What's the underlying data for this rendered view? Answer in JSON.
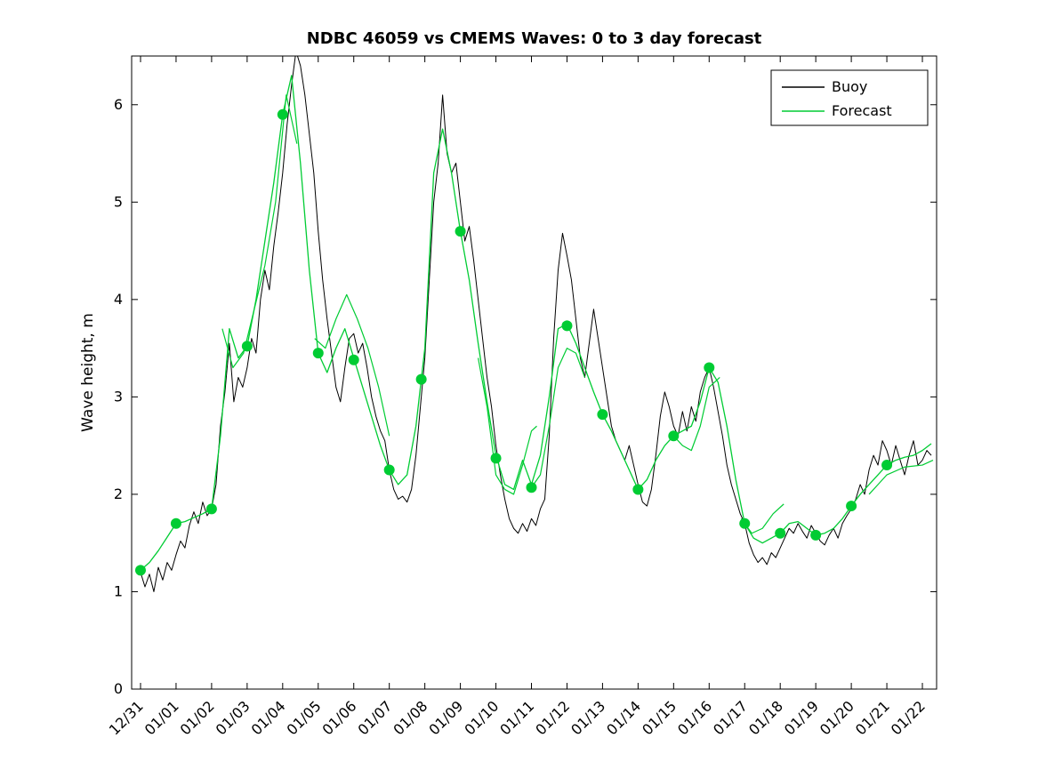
{
  "figure": {
    "background": "#ffffff",
    "axis_color": "#000000",
    "text_color": "#000000"
  },
  "chart_data": {
    "type": "line",
    "title": "NDBC 46059 vs CMEMS Waves: 0 to 3 day forecast",
    "xlabel": "",
    "ylabel": "Wave height, m",
    "xlim": [
      -0.25,
      22.4
    ],
    "ylim": [
      0,
      6.5
    ],
    "grid": false,
    "x_tick_values": [
      0,
      1,
      2,
      3,
      4,
      5,
      6,
      7,
      8,
      9,
      10,
      11,
      12,
      13,
      14,
      15,
      16,
      17,
      18,
      19,
      20,
      21,
      22
    ],
    "x_tick_labels": [
      "12/31",
      "01/01",
      "01/02",
      "01/03",
      "01/04",
      "01/05",
      "01/06",
      "01/07",
      "01/08",
      "01/09",
      "01/10",
      "01/11",
      "01/12",
      "01/13",
      "01/14",
      "01/15",
      "01/16",
      "01/17",
      "01/18",
      "01/19",
      "01/20",
      "01/21",
      "01/22"
    ],
    "y_tick_values": [
      0,
      1,
      2,
      3,
      4,
      5,
      6
    ],
    "legend": {
      "position": "northeast",
      "entries": [
        {
          "label": "Buoy",
          "color": "#000000"
        },
        {
          "label": "Forecast",
          "color": "#00cc33"
        }
      ]
    },
    "series": [
      {
        "name": "Buoy",
        "color": "#000000",
        "line_width": 1,
        "x0": 0,
        "dx": 0.125,
        "y": [
          1.2,
          1.05,
          1.18,
          1.0,
          1.25,
          1.12,
          1.3,
          1.22,
          1.38,
          1.52,
          1.45,
          1.68,
          1.82,
          1.7,
          1.92,
          1.78,
          1.85,
          2.1,
          2.7,
          3.05,
          3.55,
          2.95,
          3.2,
          3.1,
          3.3,
          3.6,
          3.45,
          4.0,
          4.3,
          4.1,
          4.55,
          4.9,
          5.3,
          5.8,
          6.2,
          6.55,
          6.4,
          6.1,
          5.7,
          5.3,
          4.7,
          4.2,
          3.8,
          3.45,
          3.1,
          2.95,
          3.3,
          3.6,
          3.65,
          3.45,
          3.55,
          3.3,
          3.0,
          2.8,
          2.65,
          2.55,
          2.25,
          2.05,
          1.95,
          1.98,
          1.92,
          2.05,
          2.4,
          2.9,
          3.4,
          4.2,
          5.0,
          5.4,
          6.1,
          5.5,
          5.3,
          5.4,
          5.0,
          4.6,
          4.75,
          4.4,
          4.0,
          3.6,
          3.2,
          2.9,
          2.5,
          2.2,
          1.95,
          1.75,
          1.65,
          1.6,
          1.7,
          1.62,
          1.75,
          1.68,
          1.85,
          1.95,
          2.6,
          3.6,
          4.3,
          4.68,
          4.45,
          4.2,
          3.8,
          3.4,
          3.2,
          3.55,
          3.9,
          3.6,
          3.3,
          3.0,
          2.7,
          2.55,
          2.45,
          2.35,
          2.5,
          2.3,
          2.1,
          1.92,
          1.88,
          2.05,
          2.4,
          2.8,
          3.05,
          2.9,
          2.7,
          2.6,
          2.85,
          2.65,
          2.9,
          2.75,
          3.05,
          3.2,
          3.3,
          3.1,
          2.85,
          2.6,
          2.3,
          2.1,
          1.95,
          1.8,
          1.7,
          1.5,
          1.38,
          1.3,
          1.35,
          1.28,
          1.4,
          1.35,
          1.45,
          1.55,
          1.65,
          1.6,
          1.7,
          1.62,
          1.55,
          1.68,
          1.6,
          1.52,
          1.48,
          1.58,
          1.65,
          1.55,
          1.7,
          1.78,
          1.85,
          1.95,
          2.1,
          2.0,
          2.25,
          2.4,
          2.3,
          2.55,
          2.45,
          2.3,
          2.5,
          2.35,
          2.2,
          2.4,
          2.55,
          2.3,
          2.35,
          2.45,
          2.4
        ]
      },
      {
        "name": "Forecast",
        "color": "#00cc33",
        "line_width": 1.3,
        "x0": 0,
        "dx": 0.25,
        "y": [
          1.22,
          1.3,
          1.42,
          1.56,
          1.7,
          1.72,
          1.76,
          1.8,
          1.85,
          2.6,
          3.7,
          3.4,
          3.52,
          4.0,
          4.6,
          5.2,
          5.9,
          6.3,
          5.4,
          4.3,
          3.45,
          3.25,
          3.5,
          3.7,
          3.4,
          3.1,
          2.8,
          2.5,
          2.25,
          2.1,
          2.2,
          2.7,
          3.5,
          5.3,
          5.75,
          5.3,
          4.7,
          4.2,
          3.55,
          2.95,
          2.4,
          2.1,
          2.05,
          2.35,
          2.1,
          2.4,
          3.0,
          3.7,
          3.75,
          3.55,
          3.3,
          3.05,
          2.82,
          2.65,
          2.45,
          2.25,
          2.05,
          2.15,
          2.35,
          2.5,
          2.6,
          2.65,
          2.7,
          2.95,
          3.3,
          3.15,
          2.7,
          2.15,
          1.7,
          1.55,
          1.5,
          1.55,
          1.6,
          1.7,
          1.72,
          1.65,
          1.58,
          1.6,
          1.65,
          1.75,
          1.88,
          2.0,
          2.1,
          2.2,
          2.3,
          2.35,
          2.38,
          2.4,
          2.45,
          2.52
        ]
      }
    ],
    "forecast_spread_segments": [
      {
        "points": [
          [
            2.3,
            3.7
          ],
          [
            2.6,
            3.3
          ],
          [
            2.9,
            3.45
          ],
          [
            3.2,
            3.9
          ],
          [
            3.5,
            4.35
          ],
          [
            3.8,
            5.0
          ],
          [
            4.1,
            6.1
          ],
          [
            4.4,
            5.6
          ]
        ]
      },
      {
        "points": [
          [
            4.9,
            3.6
          ],
          [
            5.2,
            3.5
          ],
          [
            5.5,
            3.8
          ],
          [
            5.8,
            4.05
          ],
          [
            6.1,
            3.8
          ],
          [
            6.4,
            3.5
          ],
          [
            6.7,
            3.1
          ],
          [
            7.0,
            2.6
          ]
        ]
      },
      {
        "points": [
          [
            9.5,
            3.4
          ],
          [
            9.75,
            2.9
          ],
          [
            10.0,
            2.2
          ],
          [
            10.25,
            2.05
          ],
          [
            10.5,
            2.0
          ],
          [
            10.75,
            2.3
          ],
          [
            11.0,
            2.65
          ],
          [
            11.15,
            2.7
          ]
        ]
      },
      {
        "points": [
          [
            11.0,
            2.07
          ],
          [
            11.25,
            2.2
          ],
          [
            11.5,
            2.7
          ],
          [
            11.75,
            3.3
          ],
          [
            12.0,
            3.5
          ],
          [
            12.25,
            3.45
          ],
          [
            12.5,
            3.2
          ]
        ]
      },
      {
        "points": [
          [
            15.0,
            2.6
          ],
          [
            15.25,
            2.5
          ],
          [
            15.5,
            2.45
          ],
          [
            15.75,
            2.7
          ],
          [
            16.0,
            3.1
          ],
          [
            16.3,
            3.2
          ]
        ]
      },
      {
        "points": [
          [
            16.9,
            1.75
          ],
          [
            17.2,
            1.6
          ],
          [
            17.5,
            1.65
          ],
          [
            17.8,
            1.8
          ],
          [
            18.1,
            1.9
          ]
        ]
      },
      {
        "points": [
          [
            20.5,
            2.0
          ],
          [
            20.75,
            2.1
          ],
          [
            21.0,
            2.2
          ],
          [
            21.5,
            2.28
          ],
          [
            22.0,
            2.3
          ],
          [
            22.3,
            2.35
          ]
        ]
      }
    ],
    "markers": {
      "name": "forecast-start-markers",
      "color": "#00cc33",
      "radius": 6,
      "points": [
        [
          0,
          1.22
        ],
        [
          1,
          1.7
        ],
        [
          2,
          1.85
        ],
        [
          3,
          3.52
        ],
        [
          4,
          5.9
        ],
        [
          5,
          3.45
        ],
        [
          6,
          3.38
        ],
        [
          7,
          2.25
        ],
        [
          7.9,
          3.18
        ],
        [
          9,
          4.7
        ],
        [
          10,
          2.37
        ],
        [
          11,
          2.07
        ],
        [
          12,
          3.73
        ],
        [
          13,
          2.82
        ],
        [
          14,
          2.05
        ],
        [
          15,
          2.6
        ],
        [
          16,
          3.3
        ],
        [
          17,
          1.7
        ],
        [
          18,
          1.6
        ],
        [
          19,
          1.58
        ],
        [
          20,
          1.88
        ],
        [
          21,
          2.3
        ]
      ]
    }
  }
}
